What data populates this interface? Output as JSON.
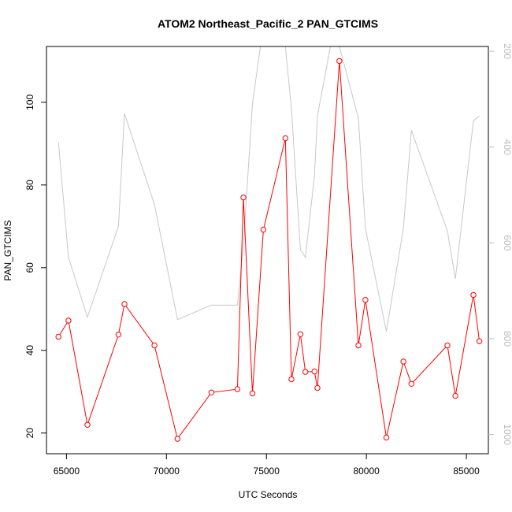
{
  "chart_data": {
    "type": "line",
    "title": "ATOM2 Northeast_Pacific_2 PAN_GTCIMS",
    "xlabel": "UTC Seconds",
    "ylabel": "PAN_GTCIMS",
    "xlim": [
      64000,
      86100
    ],
    "ylim": [
      15,
      113.5
    ],
    "y2lim": [
      1040,
      190
    ],
    "x_ticks": [
      65000,
      70000,
      75000,
      80000,
      85000
    ],
    "y_ticks": [
      20,
      40,
      60,
      80,
      100
    ],
    "y2_ticks": [
      200,
      400,
      600,
      800,
      1000
    ],
    "grid": false,
    "series": [
      {
        "axis": "left",
        "color": "#ff0000",
        "marker": "open-circle",
        "x": [
          64600,
          65100,
          66050,
          67600,
          67900,
          69400,
          70550,
          72250,
          73550,
          73850,
          74300,
          74850,
          75950,
          76250,
          76700,
          76950,
          77400,
          77550,
          78650,
          79600,
          79950,
          81000,
          81850,
          82250,
          84050,
          84450,
          85350,
          85650
        ],
        "values": [
          43.3,
          47.2,
          22.0,
          43.8,
          51.2,
          41.2,
          18.6,
          29.8,
          30.6,
          77.0,
          29.6,
          69.2,
          91.3,
          33.0,
          43.9,
          34.8,
          34.9,
          30.9,
          110.0,
          41.2,
          52.2,
          18.9,
          37.3,
          31.9,
          41.2,
          29.0,
          53.4,
          42.2
        ]
      },
      {
        "axis": "right",
        "color": "#c8c8c8",
        "marker": "none",
        "x": [
          64600,
          65100,
          66050,
          67600,
          67900,
          69400,
          70550,
          72250,
          73550,
          73850,
          74300,
          74700,
          75950,
          76250,
          76700,
          76950,
          77400,
          77550,
          78200,
          78650,
          79600,
          79950,
          81000,
          81850,
          82250,
          84050,
          84450,
          85350,
          85650
        ],
        "values": [
          390,
          630,
          755,
          565,
          330,
          520,
          760,
          730,
          730,
          605,
          310,
          190,
          190,
          320,
          615,
          630,
          460,
          335,
          190,
          190,
          340,
          570,
          785,
          570,
          365,
          575,
          675,
          345,
          335
        ]
      }
    ]
  }
}
